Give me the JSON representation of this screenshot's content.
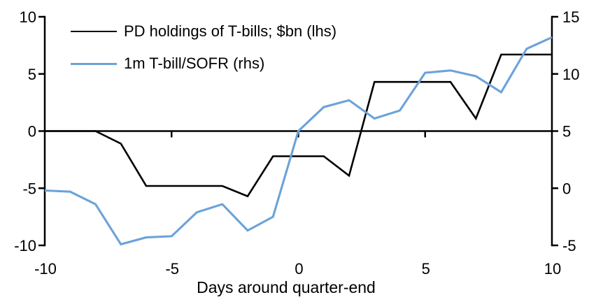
{
  "chart_data": {
    "type": "line",
    "title": "",
    "xlabel": "Days around quarter-end",
    "x_min": -10,
    "x_max": 10,
    "x_ticks": [
      -10,
      -5,
      0,
      5,
      10
    ],
    "left_axis": {
      "min": -10,
      "max": 10,
      "ticks": [
        10,
        5,
        0,
        -5,
        -10
      ]
    },
    "right_axis": {
      "min": -5,
      "max": 15,
      "ticks": [
        15,
        10,
        5,
        0,
        -5
      ]
    },
    "zero_line_left_value": 0,
    "x": [
      -10,
      -9,
      -8,
      -7,
      -6,
      -5,
      -4,
      -3,
      -2,
      -1,
      0,
      1,
      2,
      3,
      4,
      5,
      6,
      7,
      8,
      9,
      10
    ],
    "series": [
      {
        "name": "PD holdings of T-bills; $bn (lhs)",
        "axis": "left",
        "color": "#000000",
        "stroke_width": 2.6,
        "values": [
          0,
          0,
          0,
          -1.1,
          -4.8,
          -4.8,
          -4.8,
          -4.8,
          -5.7,
          -2.2,
          -2.2,
          -2.2,
          -3.9,
          4.3,
          4.3,
          4.3,
          4.3,
          1.1,
          6.7,
          6.7,
          6.7
        ]
      },
      {
        "name": "1m T-bill/SOFR (rhs)",
        "axis": "right",
        "color": "#6CA2D9",
        "stroke_width": 3.1,
        "values": [
          -0.2,
          -0.3,
          -1.4,
          -4.9,
          -4.3,
          -4.2,
          -2.1,
          -1.4,
          -3.7,
          -2.5,
          5.0,
          7.1,
          7.7,
          6.1,
          6.8,
          10.1,
          10.3,
          9.8,
          8.4,
          12.2,
          13.2
        ]
      }
    ],
    "legend_position": "top-left",
    "grid": false,
    "axis_color": "#000000"
  },
  "legend": {
    "items": [
      {
        "label": "PD holdings of T-bills; $bn (lhs)",
        "color": "#000000"
      },
      {
        "label": "1m T-bill/SOFR (rhs)",
        "color": "#6CA2D9"
      }
    ]
  }
}
